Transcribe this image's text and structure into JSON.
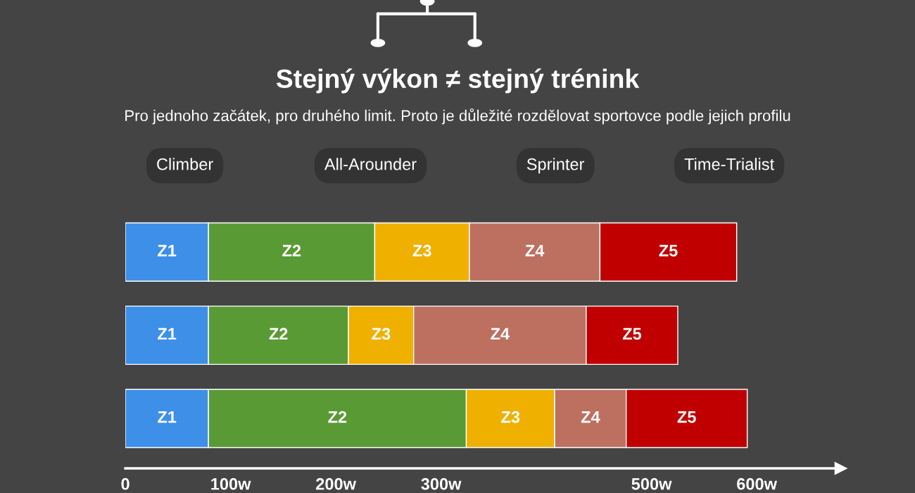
{
  "chart_data": {
    "type": "bar",
    "orientation": "horizontal",
    "stacked": true,
    "title": "Stejný výkon ≠ stejný trénink",
    "subtitle": "Pro jednoho začátek, pro druhého limit. Proto je důležité rozdělovat sportovce podle jejich profilu",
    "annotations": [
      "Climber",
      "All-Arounder",
      "Sprinter",
      "Time-Trialist"
    ],
    "categories": [
      null,
      null,
      null
    ],
    "series": [
      {
        "name": "Z1",
        "color": "#3d8fe8",
        "values": [
          79,
          79,
          79
        ]
      },
      {
        "name": "Z2",
        "color": "#5a9a34",
        "values": [
          158,
          133,
          245
        ]
      },
      {
        "name": "Z3",
        "color": "#efb000",
        "values": [
          90,
          62,
          84
        ]
      },
      {
        "name": "Z4",
        "color": "#bd7060",
        "values": [
          124,
          164,
          68
        ]
      },
      {
        "name": "Z5",
        "color": "#c00000",
        "values": [
          130,
          87,
          115
        ]
      }
    ],
    "xlim": [
      0,
      680
    ],
    "xticks": [
      {
        "value": 0,
        "label": "0"
      },
      {
        "value": 100,
        "label": "100w"
      },
      {
        "value": 200,
        "label": "200w"
      },
      {
        "value": 300,
        "label": "300w"
      },
      {
        "value": 500,
        "label": "500w"
      },
      {
        "value": 600,
        "label": "600w"
      }
    ],
    "grid": false,
    "legend": false
  }
}
